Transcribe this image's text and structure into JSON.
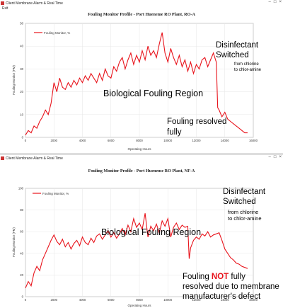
{
  "windows": [
    {
      "window_title": "Client Membrane Alarm & Real Time",
      "menu": "Exit",
      "controls": [
        "–",
        "□",
        "×"
      ]
    },
    {
      "window_title": "Client Membrane Alarm & Real Time",
      "controls": [
        "–",
        "□",
        "×"
      ]
    }
  ],
  "chart_data": [
    {
      "type": "line",
      "title": "Fouling Monitor Profile - Port Hueneme RO Plant, RO-A",
      "xlabel": "Operating Hours",
      "ylabel": "Fouling Monitor (FM)",
      "xlim": [
        0,
        16000
      ],
      "ylim": [
        0,
        50
      ],
      "xticks": [
        "0",
        "2000",
        "4000",
        "6000",
        "8000",
        "10000",
        "12000",
        "14000",
        "16000"
      ],
      "yticks": [
        "0",
        "10",
        "20",
        "30",
        "40",
        "50"
      ],
      "legend": "Fouling Monitor, %",
      "legend_position": "top-left",
      "color": "#e8131b",
      "series": [
        {
          "name": "Fouling Monitor, %",
          "x": [
            0,
            200,
            400,
            600,
            800,
            1000,
            1200,
            1400,
            1600,
            1800,
            2000,
            2200,
            2400,
            2600,
            2800,
            3000,
            3200,
            3400,
            3600,
            3800,
            4000,
            4200,
            4400,
            4600,
            4800,
            5000,
            5200,
            5400,
            5600,
            5800,
            6000,
            6200,
            6400,
            6600,
            6800,
            7000,
            7200,
            7400,
            7600,
            7800,
            8000,
            8200,
            8400,
            8600,
            8800,
            9000,
            9200,
            9400,
            9600,
            9800,
            10000,
            10200,
            10400,
            10600,
            10800,
            11000,
            11200,
            11400,
            11600,
            11800,
            12000,
            12200,
            12400,
            12600,
            12800,
            13000,
            13200,
            13400,
            13500,
            13600,
            13800,
            14000,
            14200,
            14400,
            14600,
            14800,
            15000,
            15200,
            15400,
            15600
          ],
          "y": [
            1,
            3,
            2,
            5,
            4,
            7,
            9,
            12,
            10,
            15,
            24,
            20,
            26,
            22,
            21,
            24,
            22,
            25,
            23,
            26,
            24,
            27,
            25,
            28,
            26,
            24,
            28,
            25,
            30,
            27,
            26,
            31,
            29,
            33,
            35,
            30,
            34,
            37,
            32,
            36,
            33,
            38,
            34,
            40,
            36,
            38,
            35,
            41,
            46,
            37,
            33,
            39,
            35,
            32,
            36,
            31,
            34,
            29,
            33,
            28,
            32,
            30,
            34,
            35,
            31,
            34,
            37,
            33,
            13,
            12,
            9,
            11,
            8,
            7,
            6,
            5,
            4,
            3,
            2,
            2
          ]
        }
      ],
      "annotations": [
        {
          "text": "Disinfectant",
          "x_data": 14000,
          "y_data": 44
        },
        {
          "text": "Switched",
          "x_data": 14000,
          "y_data": 39
        },
        {
          "text": "from chlorine",
          "x_data": 14000,
          "y_data": 34
        },
        {
          "text": "to chlor-amine",
          "x_data": 14000,
          "y_data": 32
        },
        {
          "text": "Biological Fouling Region",
          "x_data": 9000,
          "y_data": 24
        },
        {
          "text": "Fouling resolved",
          "x_data": 13300,
          "y_data": 13
        },
        {
          "text": "fully",
          "x_data": 13300,
          "y_data": 8
        }
      ]
    },
    {
      "type": "line",
      "title": "Fouling Monitor Profile - Port Hueneme RO Plant, NF-A",
      "xlabel": "Operating Hours",
      "ylabel": "Fouling Monitor (FM)",
      "xlim": [
        0,
        16000
      ],
      "ylim": [
        0,
        100
      ],
      "xticks": [
        "0",
        "2000",
        "4000",
        "6000",
        "8000",
        "10000",
        "12000",
        "14000",
        "16000"
      ],
      "yticks": [
        "0",
        "20",
        "40",
        "60",
        "80",
        "100"
      ],
      "legend": "Fouling Monitor, %",
      "legend_position": "top-left",
      "color": "#e8131b",
      "series": [
        {
          "name": "Fouling Monitor, %",
          "x": [
            0,
            200,
            400,
            600,
            800,
            1000,
            1200,
            1400,
            1600,
            1800,
            2000,
            2200,
            2400,
            2600,
            2800,
            3000,
            3200,
            3400,
            3600,
            3800,
            4000,
            4200,
            4400,
            4600,
            4800,
            5000,
            5200,
            5400,
            5600,
            5800,
            6000,
            6200,
            6400,
            6600,
            6800,
            7000,
            7200,
            7400,
            7600,
            7800,
            8000,
            8200,
            8400,
            8600,
            8800,
            9000,
            9200,
            9400,
            9600,
            9800,
            10000,
            10200,
            10400,
            10600,
            10800,
            11000,
            11200,
            11400,
            11500,
            11600,
            11800,
            12000,
            12200,
            12400,
            12600,
            12800,
            13000,
            13200,
            13400,
            13600,
            13800,
            14000,
            14200,
            14400,
            14600,
            14800,
            15000,
            15200,
            15400,
            15600
          ],
          "y": [
            8,
            14,
            10,
            22,
            28,
            24,
            34,
            40,
            46,
            52,
            57,
            51,
            48,
            53,
            46,
            50,
            44,
            49,
            52,
            47,
            55,
            50,
            48,
            54,
            50,
            56,
            58,
            53,
            57,
            61,
            55,
            59,
            54,
            58,
            63,
            57,
            66,
            60,
            72,
            64,
            68,
            62,
            77,
            55,
            65,
            61,
            67,
            59,
            70,
            65,
            72,
            55,
            64,
            68,
            62,
            66,
            64,
            65,
            35,
            45,
            52,
            55,
            53,
            58,
            56,
            60,
            55,
            57,
            58,
            59,
            52,
            44,
            40,
            36,
            34,
            31,
            30,
            28,
            27,
            26
          ]
        }
      ],
      "annotations": [
        {
          "text": "Disinfectant",
          "x_data": 14000,
          "y_data": 92
        },
        {
          "text": "Switched",
          "x_data": 14000,
          "y_data": 82
        },
        {
          "text": "from chlorine",
          "x_data": 14000,
          "y_data": 70
        },
        {
          "text": "to chlor-amine",
          "x_data": 14000,
          "y_data": 65
        },
        {
          "text": "Biological Fouling Region",
          "x_data": 8000,
          "y_data": 43
        },
        {
          "text": "Fouling",
          "x_data": 11500,
          "y_data": 20
        },
        {
          "text": "NOT",
          "x_data": 11500,
          "y_data": 20
        },
        {
          "text": "fully",
          "x_data": 11500,
          "y_data": 20
        },
        {
          "text": "resolved due to membrane",
          "x_data": 11500,
          "y_data": 11
        },
        {
          "text": "manufacturer's defect",
          "x_data": 11500,
          "y_data": 2
        }
      ]
    }
  ]
}
